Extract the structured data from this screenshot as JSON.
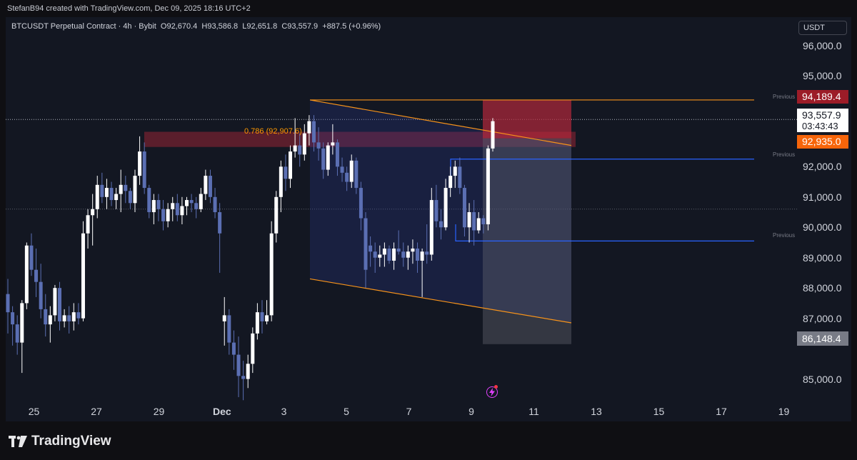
{
  "header": {
    "credit": "StefanB94 created with TradingView.com, Dec 09, 2025 18:16 UTC+2"
  },
  "legend": {
    "symbol": "BTCUSDT Perpetual Contract · 4h · Bybit",
    "open": "O92,670.4",
    "high": "H93,586.8",
    "low": "L92,651.8",
    "close": "C93,557.9",
    "change": "+887.5 (+0.96%)"
  },
  "currency_button": "USDT",
  "price_tags": {
    "take_profit": "94,189.4",
    "last_price": "93,557.9",
    "countdown": "03:43:43",
    "entry": "92,935.0",
    "stop": "86,148.4"
  },
  "previous_labels": [
    "Previous",
    "Previous",
    "Previous"
  ],
  "fib_label": "0.786 (92,907.6)",
  "brand": "TradingView",
  "colors": {
    "up": "#ffffff",
    "down": "#5b6fb3",
    "orange": "#f7931a",
    "blue_line": "#2962ff",
    "red_zone": "#b2283a",
    "last_price": "#ffffff",
    "entry_tag": "#f7650a",
    "tp_tag": "#9c1c28",
    "stop_tag": "#787b86"
  },
  "chart_data": {
    "type": "candlestick",
    "interval": "4h",
    "ylim": [
      84000,
      97000
    ],
    "y_ticks": [
      "96,000.0",
      "95,000.0",
      "92,000.0",
      "91,000.0",
      "90,000.0",
      "89,000.0",
      "88,000.0",
      "87,000.0",
      "85,000.0"
    ],
    "y_tick_values": [
      96000,
      95000,
      92000,
      91000,
      90000,
      89000,
      88000,
      87000,
      85000
    ],
    "x_ticks": [
      "25",
      "27",
      "29",
      "Dec",
      "3",
      "5",
      "7",
      "9",
      "11",
      "13",
      "15",
      "17",
      "19"
    ],
    "x_tick_days": [
      -6,
      -4,
      -2,
      0,
      2,
      4,
      6,
      8,
      10,
      12,
      14,
      16,
      18
    ],
    "candles_note": "approximate OHLC per 4h candle read from the figure",
    "candles": [
      [
        87800,
        88300,
        86500,
        87200
      ],
      [
        87200,
        87400,
        86100,
        86800
      ],
      [
        86800,
        87100,
        85800,
        86200
      ],
      [
        86200,
        87600,
        85200,
        87500
      ],
      [
        87500,
        89500,
        87300,
        89400
      ],
      [
        89400,
        89800,
        88400,
        88600
      ],
      [
        88600,
        89300,
        87700,
        88200
      ],
      [
        88200,
        88800,
        87000,
        87300
      ],
      [
        87300,
        87800,
        86400,
        86800
      ],
      [
        86800,
        87400,
        86200,
        87100
      ],
      [
        87100,
        88100,
        86900,
        88000
      ],
      [
        88000,
        88200,
        86600,
        86900
      ],
      [
        86900,
        87300,
        86700,
        87100
      ],
      [
        87100,
        87400,
        86500,
        86900
      ],
      [
        86900,
        87500,
        86600,
        87200
      ],
      [
        87200,
        87500,
        86800,
        87000
      ],
      [
        87000,
        90200,
        86900,
        89800
      ],
      [
        89800,
        90600,
        89300,
        90400
      ],
      [
        90400,
        91100,
        89400,
        90600
      ],
      [
        90600,
        91700,
        90300,
        91400
      ],
      [
        91400,
        91800,
        90800,
        91000
      ],
      [
        91000,
        91600,
        90600,
        91300
      ],
      [
        91300,
        91500,
        90700,
        90900
      ],
      [
        90900,
        91300,
        90600,
        91100
      ],
      [
        91100,
        91900,
        90500,
        91400
      ],
      [
        91400,
        91700,
        90800,
        91200
      ],
      [
        91200,
        91300,
        90600,
        90800
      ],
      [
        90800,
        91900,
        90500,
        91700
      ],
      [
        91700,
        93000,
        91400,
        92500
      ],
      [
        92500,
        92800,
        91100,
        91300
      ],
      [
        91300,
        91400,
        90300,
        90500
      ],
      [
        90500,
        91100,
        90100,
        90900
      ],
      [
        90900,
        91100,
        90200,
        90600
      ],
      [
        90600,
        90900,
        89900,
        90200
      ],
      [
        90200,
        90800,
        90000,
        90600
      ],
      [
        90600,
        91000,
        90200,
        90800
      ],
      [
        90800,
        91100,
        90200,
        90400
      ],
      [
        90400,
        91000,
        90100,
        90700
      ],
      [
        90700,
        91000,
        90400,
        90900
      ],
      [
        90900,
        91100,
        90500,
        90800
      ],
      [
        90800,
        91000,
        90300,
        90600
      ],
      [
        90600,
        91300,
        90500,
        91100
      ],
      [
        91100,
        91900,
        90900,
        91700
      ],
      [
        91700,
        91900,
        90800,
        91000
      ],
      [
        91000,
        91300,
        90300,
        90500
      ],
      [
        90500,
        90800,
        88500,
        89800
      ],
      [
        86900,
        87700,
        86100,
        87100
      ],
      [
        87100,
        87300,
        85800,
        86200
      ],
      [
        86200,
        86600,
        85300,
        85800
      ],
      [
        85800,
        86400,
        84400,
        85100
      ],
      [
        85100,
        85600,
        84300,
        85000
      ],
      [
        85000,
        85800,
        84700,
        85500
      ],
      [
        85500,
        86700,
        85200,
        86500
      ],
      [
        86500,
        87500,
        86300,
        87200
      ],
      [
        87200,
        87600,
        86500,
        86900
      ],
      [
        86900,
        87600,
        86800,
        87100
      ],
      [
        87100,
        90200,
        86900,
        89800
      ],
      [
        89800,
        91200,
        89500,
        91000
      ],
      [
        91000,
        92200,
        90500,
        92000
      ],
      [
        92000,
        92400,
        91200,
        91600
      ],
      [
        91600,
        92700,
        91300,
        92500
      ],
      [
        92500,
        93600,
        92300,
        92700
      ],
      [
        92700,
        93100,
        92000,
        92400
      ],
      [
        92400,
        93400,
        92200,
        93100
      ],
      [
        93100,
        93700,
        92700,
        93500
      ],
      [
        93500,
        93700,
        92500,
        92800
      ],
      [
        92800,
        93300,
        92200,
        92600
      ],
      [
        92600,
        92800,
        91600,
        91900
      ],
      [
        91900,
        92800,
        91700,
        92700
      ],
      [
        92700,
        93400,
        92400,
        92800
      ],
      [
        92800,
        92900,
        91700,
        92000
      ],
      [
        92000,
        92300,
        91500,
        91800
      ],
      [
        91800,
        92000,
        91200,
        91500
      ],
      [
        91500,
        92400,
        91300,
        92200
      ],
      [
        92200,
        92300,
        91100,
        91300
      ],
      [
        91300,
        91500,
        89900,
        90300
      ],
      [
        90300,
        90500,
        88000,
        88600
      ],
      [
        89400,
        89700,
        88700,
        89200
      ],
      [
        89200,
        89500,
        88500,
        89000
      ],
      [
        89000,
        89400,
        88700,
        89100
      ],
      [
        89100,
        89500,
        88700,
        89300
      ],
      [
        89300,
        89400,
        88800,
        88900
      ],
      [
        88900,
        89500,
        88600,
        89300
      ],
      [
        89300,
        89900,
        89100,
        89200
      ],
      [
        89200,
        89500,
        88700,
        89000
      ],
      [
        89000,
        89400,
        88600,
        89200
      ],
      [
        89200,
        89600,
        88800,
        89300
      ],
      [
        89300,
        89500,
        88500,
        88900
      ],
      [
        88900,
        89300,
        87700,
        89200
      ],
      [
        89200,
        90100,
        88800,
        89100
      ],
      [
        89100,
        91300,
        88900,
        90900
      ],
      [
        90900,
        91400,
        90000,
        90200
      ],
      [
        90200,
        90600,
        89600,
        90000
      ],
      [
        90000,
        91600,
        89900,
        91300
      ],
      [
        91300,
        92000,
        91000,
        91700
      ],
      [
        91700,
        92200,
        91300,
        92000
      ],
      [
        92000,
        92300,
        91100,
        91300
      ],
      [
        91300,
        91400,
        89700,
        90000
      ],
      [
        90000,
        90800,
        89500,
        90500
      ],
      [
        90500,
        90900,
        89400,
        89900
      ],
      [
        89900,
        90500,
        89800,
        90300
      ],
      [
        90300,
        90400,
        89800,
        90100
      ],
      [
        90100,
        92700,
        89900,
        92600
      ],
      [
        92600,
        93600,
        92500,
        93500
      ]
    ]
  }
}
